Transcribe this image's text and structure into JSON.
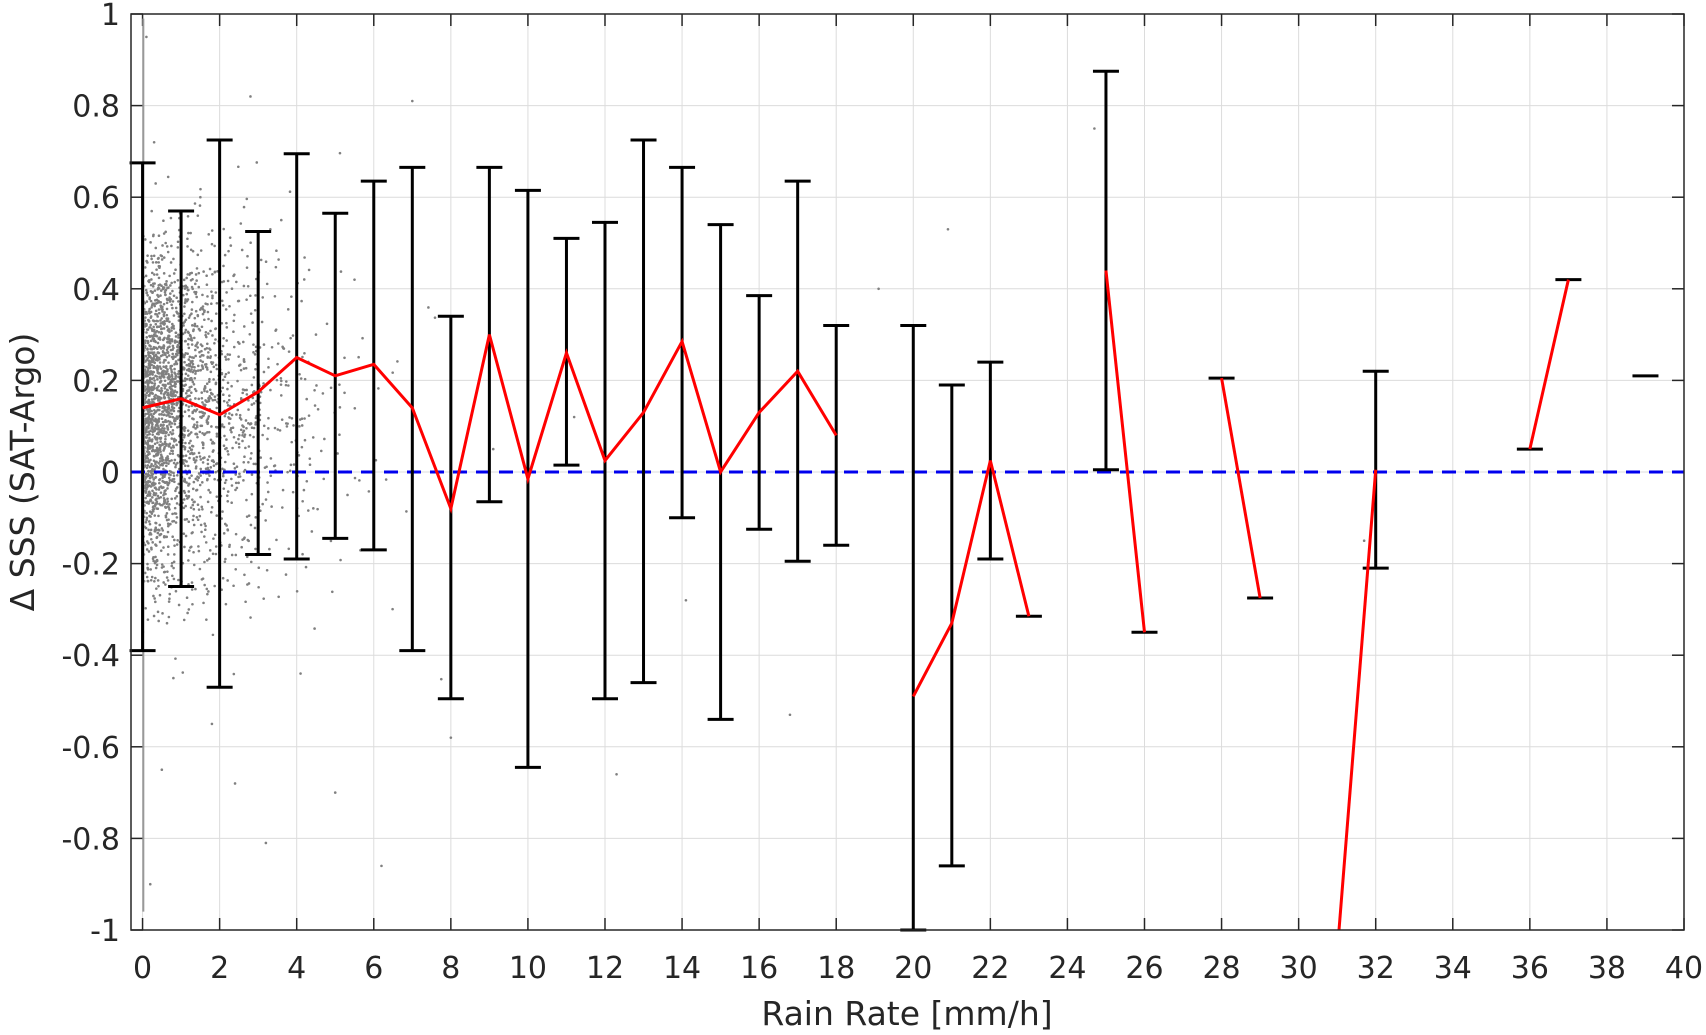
{
  "chart_data": {
    "type": "scatter",
    "title": "",
    "xlabel": "Rain Rate [mm/h]",
    "ylabel": "Δ SSS (SAT-Argo)",
    "xlim": [
      -0.3,
      40
    ],
    "ylim": [
      -1,
      1
    ],
    "xticks": [
      0,
      2,
      4,
      6,
      8,
      10,
      12,
      14,
      16,
      18,
      20,
      22,
      24,
      26,
      28,
      30,
      32,
      34,
      36,
      38,
      40
    ],
    "yticks": [
      -1,
      -0.8,
      -0.6,
      -0.4,
      -0.2,
      0,
      0.2,
      0.4,
      0.6,
      0.8,
      1
    ],
    "xtick_labels": [
      "0",
      "2",
      "4",
      "6",
      "8",
      "10",
      "12",
      "14",
      "16",
      "18",
      "20",
      "22",
      "24",
      "26",
      "28",
      "30",
      "32",
      "34",
      "36",
      "38",
      "40"
    ],
    "ytick_labels": [
      "-1",
      "-0.8",
      "-0.6",
      "-0.4",
      "-0.2",
      "0",
      "0.2",
      "0.4",
      "0.6",
      "0.8",
      "1"
    ],
    "grid": true,
    "colors": {
      "scatter": "#808080",
      "errorbar": "#000000",
      "mean_line": "#ff0000",
      "zero_line": "#0000ee"
    },
    "reference_line": {
      "y": 0,
      "style": "dashed"
    },
    "scatter_points": {
      "description": "dense cloud of small grey dots concentrated at 0-8 mm/h",
      "sample_x": [
        0.1,
        0.2,
        0.3,
        0.5,
        0.6,
        0.8,
        1.0,
        1.2,
        1.5,
        1.8,
        2.1,
        2.4,
        2.8,
        3.2,
        3.6,
        4.1,
        4.5,
        5.0,
        5.5,
        6.2,
        7.0,
        8.0,
        9.1,
        11.2,
        12.3,
        14.1,
        16.8,
        19.1,
        20.9,
        24.7,
        31.7
      ],
      "sample_y": [
        0.95,
        -0.9,
        0.72,
        -0.65,
        0.5,
        -0.45,
        0.38,
        -0.3,
        0.6,
        -0.55,
        0.45,
        -0.68,
        0.82,
        -0.81,
        0.55,
        -0.44,
        0.3,
        -0.7,
        0.42,
        -0.86,
        0.81,
        -0.58,
        0.05,
        0.12,
        -0.66,
        -0.28,
        -0.53,
        0.4,
        0.53,
        0.75,
        -0.15
      ]
    },
    "errorbars": [
      {
        "x": 0,
        "mean": 0.14,
        "low": -0.39,
        "high": 0.675
      },
      {
        "x": 1,
        "mean": 0.16,
        "low": -0.25,
        "high": 0.57
      },
      {
        "x": 2,
        "mean": 0.125,
        "low": -0.47,
        "high": 0.725
      },
      {
        "x": 3,
        "mean": 0.175,
        "low": -0.18,
        "high": 0.525
      },
      {
        "x": 4,
        "mean": 0.25,
        "low": -0.19,
        "high": 0.695
      },
      {
        "x": 5,
        "mean": 0.21,
        "low": -0.145,
        "high": 0.565
      },
      {
        "x": 6,
        "mean": 0.235,
        "low": -0.17,
        "high": 0.635
      },
      {
        "x": 7,
        "mean": 0.14,
        "low": -0.39,
        "high": 0.665
      },
      {
        "x": 8,
        "mean": -0.08,
        "low": -0.495,
        "high": 0.34
      },
      {
        "x": 9,
        "mean": 0.3,
        "low": -0.065,
        "high": 0.665
      },
      {
        "x": 10,
        "mean": -0.015,
        "low": -0.645,
        "high": 0.615
      },
      {
        "x": 11,
        "mean": 0.26,
        "low": 0.015,
        "high": 0.51
      },
      {
        "x": 12,
        "mean": 0.025,
        "low": -0.495,
        "high": 0.545
      },
      {
        "x": 13,
        "mean": 0.13,
        "low": -0.46,
        "high": 0.725
      },
      {
        "x": 14,
        "mean": 0.285,
        "low": -0.1,
        "high": 0.665
      },
      {
        "x": 15,
        "mean": 0.0,
        "low": -0.54,
        "high": 0.54
      },
      {
        "x": 16,
        "mean": 0.13,
        "low": -0.125,
        "high": 0.385
      },
      {
        "x": 17,
        "mean": 0.22,
        "low": -0.195,
        "high": 0.635
      },
      {
        "x": 18,
        "mean": 0.08,
        "low": -0.16,
        "high": 0.32
      },
      {
        "x": 20,
        "mean": -0.49,
        "low": -1.0,
        "high": 0.32
      },
      {
        "x": 21,
        "mean": -0.33,
        "low": -0.86,
        "high": 0.19
      },
      {
        "x": 22,
        "mean": 0.025,
        "low": -0.19,
        "high": 0.24
      },
      {
        "x": 23,
        "mean": -0.315,
        "low": -0.315,
        "high": -0.315
      },
      {
        "x": 25,
        "mean": 0.44,
        "low": 0.005,
        "high": 0.875
      },
      {
        "x": 26,
        "mean": -0.35,
        "low": -0.35,
        "high": -0.35
      },
      {
        "x": 28,
        "mean": 0.205,
        "low": 0.205,
        "high": 0.205
      },
      {
        "x": 29,
        "mean": -0.275,
        "low": -0.275,
        "high": -0.275
      },
      {
        "x": 31,
        "mean": -1.05,
        "low": -1.05,
        "high": -1.05
      },
      {
        "x": 32,
        "mean": 0.005,
        "low": -0.21,
        "high": 0.22
      },
      {
        "x": 36,
        "mean": 0.05,
        "low": 0.05,
        "high": 0.05
      },
      {
        "x": 37,
        "mean": 0.42,
        "low": 0.42,
        "high": 0.42
      },
      {
        "x": 39,
        "mean": 0.21,
        "low": 0.21,
        "high": 0.21
      }
    ],
    "mean_line_segments": [
      [
        0,
        1,
        2,
        3,
        4,
        5,
        6,
        7,
        8,
        9,
        10,
        11,
        12,
        13,
        14,
        15,
        16,
        17,
        18
      ],
      [
        20,
        21,
        22,
        23
      ],
      [
        25,
        26
      ],
      [
        28,
        29
      ],
      [
        31,
        32
      ],
      [
        36,
        37
      ]
    ]
  }
}
